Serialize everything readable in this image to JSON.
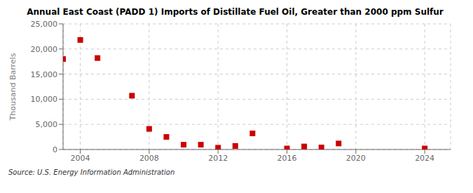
{
  "chart_data": {
    "type": "scatter",
    "title": "Annual East Coast (PADD 1) Imports of Distillate Fuel Oil, Greater than 2000 ppm Sulfur",
    "ylabel": "Thousand Barrels",
    "source": "Source: U.S. Energy Information Administration",
    "x": [
      2003,
      2004,
      2005,
      2007,
      2008,
      2009,
      2010,
      2011,
      2012,
      2013,
      2014,
      2016,
      2017,
      2018,
      2019,
      2024
    ],
    "values": [
      18000,
      21800,
      18200,
      10700,
      4100,
      2500,
      950,
      950,
      350,
      700,
      3200,
      200,
      600,
      400,
      1200,
      200
    ],
    "color": "#cc0000",
    "marker": "square",
    "grid": true,
    "xlim": [
      2003.0,
      2025.5
    ],
    "xticks": [
      2004,
      2008,
      2012,
      2016,
      2020,
      2024
    ],
    "ylim": [
      0,
      25000
    ],
    "yticks": [
      0,
      {
        "value": 5000,
        "label": "5,000"
      },
      {
        "value": 10000,
        "label": "10,000"
      },
      {
        "value": 15000,
        "label": "15,000"
      },
      {
        "value": 20000,
        "label": "20,000"
      },
      {
        "value": 25000,
        "label": "25,000"
      }
    ]
  }
}
